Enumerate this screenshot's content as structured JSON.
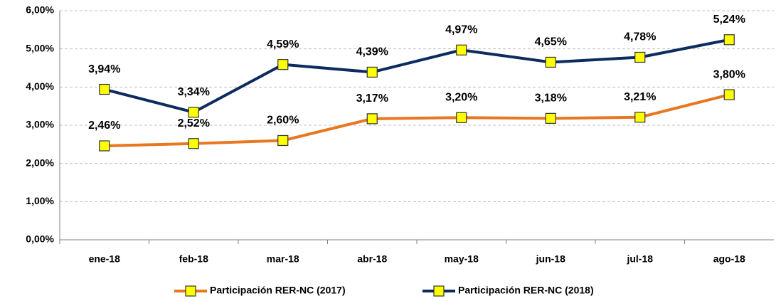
{
  "chart_data": {
    "type": "line",
    "categories": [
      "ene-18",
      "feb-18",
      "mar-18",
      "abr-18",
      "may-18",
      "jun-18",
      "jul-18",
      "ago-18"
    ],
    "series": [
      {
        "name": "Participación RER-NC (2017)",
        "color": "#e87722",
        "values": [
          2.46,
          2.52,
          2.6,
          3.17,
          3.2,
          3.18,
          3.21,
          3.8
        ],
        "value_labels": [
          "2,46%",
          "2,52%",
          "2,60%",
          "3,17%",
          "3,20%",
          "3,18%",
          "3,21%",
          "3,80%"
        ]
      },
      {
        "name": "Participación RER-NC (2018)",
        "color": "#0d2b5e",
        "values": [
          3.94,
          3.34,
          4.59,
          4.39,
          4.97,
          4.65,
          4.78,
          5.24
        ],
        "value_labels": [
          "3,94%",
          "3,34%",
          "4,59%",
          "4,39%",
          "4,97%",
          "4,65%",
          "4,78%",
          "5,24%"
        ]
      }
    ],
    "marker_color": "#ffff00",
    "ylim": [
      0,
      6
    ],
    "yticks": [
      {
        "value": 0,
        "label": "0,00%"
      },
      {
        "value": 1,
        "label": "1,00%"
      },
      {
        "value": 2,
        "label": "2,00%"
      },
      {
        "value": 3,
        "label": "3,00%"
      },
      {
        "value": 4,
        "label": "4,00%"
      },
      {
        "value": 5,
        "label": "5,00%"
      },
      {
        "value": 6,
        "label": "6,00%"
      }
    ],
    "grid": true,
    "legend": "bottom"
  }
}
